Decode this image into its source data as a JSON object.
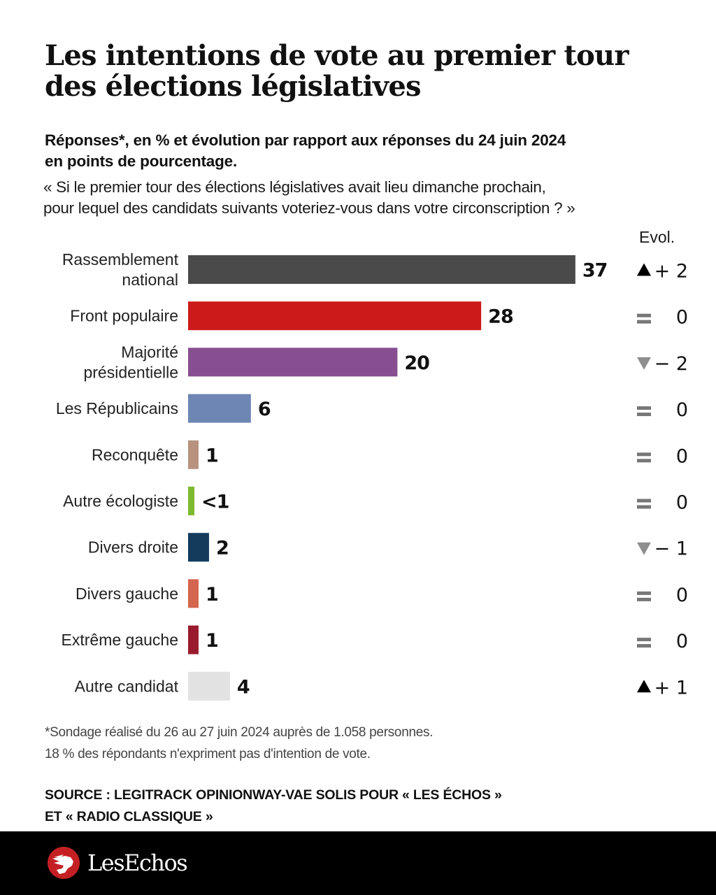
{
  "title": "Les intentions de vote au premier tour des élections législatives",
  "subtitle": "Réponses*, en % et évolution par rapport aux réponses du 24 juin 2024 en points de pourcentage.",
  "question": "« Si le premier tour des élections législatives avait lieu dimanche prochain, pour lequel des candidats suivants voteriez-vous dans votre circonscription ? »",
  "evol_header": "Evol.",
  "footnote_line1": "*Sondage réalisé du 26 au 27 juin 2024 auprès de 1.058 personnes.",
  "footnote_line2": "18 % des répondants n'expriment pas d'intention de vote.",
  "source_line1": "SOURCE : LEGITRACK OPINIONWAY-VAE SOLIS POUR « LES ÉCHOS »",
  "source_line2": "ET « RADIO CLASSIQUE »",
  "brand": {
    "name": "LesEchos",
    "logo_icon": "winged-head-logo-icon",
    "logo_color": "#c42024"
  },
  "chart_data": {
    "type": "bar",
    "orientation": "horizontal",
    "title": "Les intentions de vote au premier tour des élections législatives",
    "xlabel": "",
    "ylabel": "",
    "xlim": [
      0,
      37
    ],
    "grid": false,
    "legend": "none",
    "categories": [
      [
        "Rassemblement",
        "national"
      ],
      [
        "Front populaire"
      ],
      [
        "Majorité",
        "présidentielle"
      ],
      [
        "Les Républicains"
      ],
      [
        "Reconquête"
      ],
      [
        "Autre écologiste"
      ],
      [
        "Divers droite"
      ],
      [
        "Divers gauche"
      ],
      [
        "Extrême gauche"
      ],
      [
        "Autre candidat"
      ]
    ],
    "values": [
      37,
      28,
      20,
      6,
      1,
      0.6,
      2,
      1,
      1,
      4
    ],
    "value_labels": [
      "37",
      "28",
      "20",
      "6",
      "1",
      "<1",
      "2",
      "1",
      "1",
      "4"
    ],
    "colors": [
      "#4a4a4a",
      "#cc1a1a",
      "#874e91",
      "#6e86b3",
      "#b8927f",
      "#7dba2f",
      "#123b5c",
      "#d4654f",
      "#9a1a2e",
      "#e2e2e2"
    ],
    "evolution": {
      "label": "Evol.",
      "directions": [
        "up",
        "equal",
        "down",
        "equal",
        "equal",
        "equal",
        "down",
        "equal",
        "equal",
        "up"
      ],
      "values": [
        "+ 2",
        "0",
        "− 2",
        "0",
        "0",
        "0",
        "− 1",
        "0",
        "0",
        "+ 1"
      ],
      "numeric": [
        2,
        0,
        -2,
        0,
        0,
        0,
        -1,
        0,
        0,
        1
      ],
      "icon_colors": {
        "up": "#000000",
        "equal": "#777777",
        "down": "#8e8e8e"
      }
    }
  }
}
